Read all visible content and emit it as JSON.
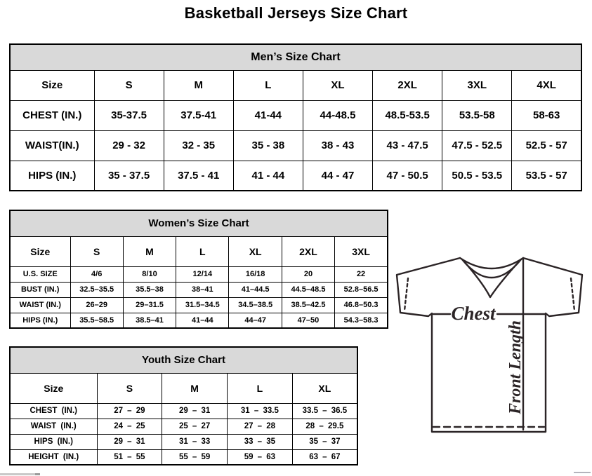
{
  "title": "Basketball Jerseys Size Chart",
  "colors": {
    "caption_bg": "#d9d9d9",
    "table_border": "#000000",
    "diagram_stroke": "#2b2426"
  },
  "tables": [
    {
      "caption": "Men’s Size Chart",
      "columns": [
        "Size",
        "S",
        "M",
        "L",
        "XL",
        "2XL",
        "3XL",
        "4XL"
      ],
      "rows": [
        {
          "label": "CHEST (IN.)",
          "values": [
            "35-37.5",
            "37.5-41",
            "41-44",
            "44-48.5",
            "48.5-53.5",
            "53.5-58",
            "58-63"
          ]
        },
        {
          "label": "WAIST(IN.)",
          "values": [
            "29 - 32",
            "32 - 35",
            "35 - 38",
            "38 - 43",
            "43 - 47.5",
            "47.5 - 52.5",
            "52.5 - 57"
          ]
        },
        {
          "label": "HIPS (IN.)",
          "values": [
            "35 - 37.5",
            "37.5 - 41",
            "41 - 44",
            "44 - 47",
            "47 - 50.5",
            "50.5 - 53.5",
            "53.5 - 57"
          ]
        }
      ]
    },
    {
      "caption": "Women’s Size Chart",
      "columns": [
        "Size",
        "S",
        "M",
        "L",
        "XL",
        "2XL",
        "3XL"
      ],
      "rows": [
        {
          "label": "U.S. SIZE",
          "values": [
            "4/6",
            "8/10",
            "12/14",
            "16/18",
            "20",
            "22"
          ]
        },
        {
          "label": "BUST (IN.)",
          "values": [
            "32.5–35.5",
            "35.5–38",
            "38–41",
            "41–44.5",
            "44.5–48.5",
            "52.8–56.5"
          ]
        },
        {
          "label": "WAIST (IN.)",
          "values": [
            "26–29",
            "29–31.5",
            "31.5–34.5",
            "34.5–38.5",
            "38.5–42.5",
            "46.8–50.3"
          ]
        },
        {
          "label": "HIPS (IN.)",
          "values": [
            "35.5–58.5",
            "38.5–41",
            "41–44",
            "44–47",
            "47–50",
            "54.3–58.3"
          ]
        }
      ]
    },
    {
      "caption": "Youth Size Chart",
      "columns": [
        "Size",
        "S",
        "M",
        "L",
        "XL"
      ],
      "rows": [
        {
          "label": "CHEST (IN.)",
          "values": [
            "27 – 29",
            "29 – 31",
            "31 – 33.5",
            "33.5 – 36.5"
          ]
        },
        {
          "label": "WAIST (IN.)",
          "values": [
            "24 – 25",
            "25 – 27",
            "27 – 28",
            "28 – 29.5"
          ]
        },
        {
          "label": "HIPS (IN.)",
          "values": [
            "29 – 31",
            "31 – 33",
            "33 – 35",
            "35 – 37"
          ]
        },
        {
          "label": "HEIGHT (IN.)",
          "values": [
            "51 – 55",
            "55 – 59",
            "59 – 63",
            "63 – 67"
          ]
        }
      ]
    }
  ],
  "diagram": {
    "chest_label": "Chest",
    "front_length_label": "Front Length"
  }
}
